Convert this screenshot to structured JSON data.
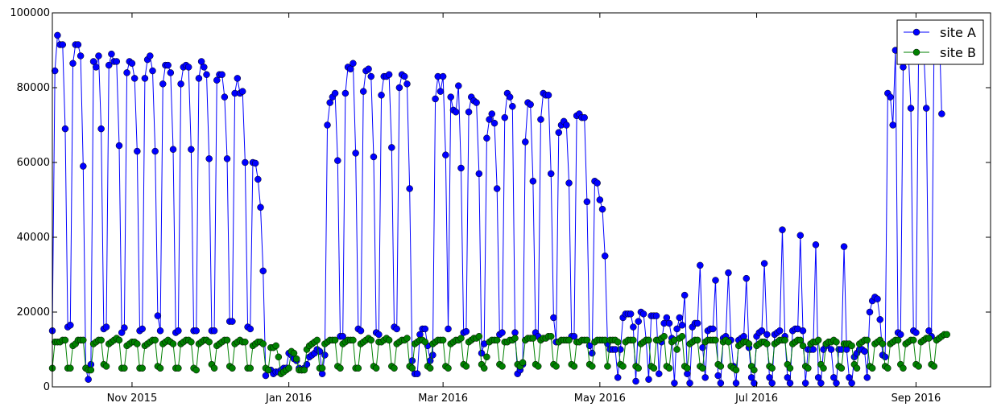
{
  "chart_data": {
    "type": "line",
    "title": "",
    "xlabel": "",
    "ylabel": "",
    "xlim": [
      "2015-10-01",
      "2016-09-30"
    ],
    "ylim": [
      0,
      100000
    ],
    "grid": false,
    "legend_position": "top-right",
    "x_ticks": [
      {
        "date": "2015-11-01",
        "label": "Nov 2015"
      },
      {
        "date": "2016-01-01",
        "label": "Jan 2016"
      },
      {
        "date": "2016-03-01",
        "label": "Mar 2016"
      },
      {
        "date": "2016-05-01",
        "label": "May 2016"
      },
      {
        "date": "2016-07-01",
        "label": "Jul 2016"
      },
      {
        "date": "2016-09-01",
        "label": "Sep 2016"
      }
    ],
    "y_ticks": [
      {
        "value": 0,
        "label": "0"
      },
      {
        "value": 20000,
        "label": "20000"
      },
      {
        "value": 40000,
        "label": "40000"
      },
      {
        "value": 60000,
        "label": "60000"
      },
      {
        "value": 80000,
        "label": "80000"
      },
      {
        "value": 100000,
        "label": "100000"
      }
    ],
    "series": [
      {
        "name": "site A",
        "color": "#0000ff",
        "start_date": "2015-10-01",
        "values": [
          15000,
          84500,
          94000,
          91500,
          91500,
          69000,
          16000,
          16500,
          86500,
          91500,
          91500,
          88500,
          59000,
          5000,
          2000,
          6000,
          87000,
          85500,
          88500,
          69000,
          15500,
          16000,
          86000,
          89000,
          87000,
          87000,
          64500,
          14500,
          15800,
          84000,
          87000,
          86500,
          82500,
          63000,
          15000,
          15500,
          82500,
          87500,
          88500,
          84500,
          63000,
          19000,
          15000,
          81000,
          86000,
          86000,
          84000,
          63500,
          14500,
          15000,
          81000,
          85500,
          86000,
          85500,
          63500,
          15000,
          15000,
          82500,
          87000,
          85500,
          83500,
          61000,
          15000,
          15000,
          82000,
          83500,
          83500,
          77500,
          61000,
          17500,
          17500,
          78500,
          82500,
          78500,
          79000,
          60000,
          16000,
          15500,
          60000,
          59800,
          55500,
          48000,
          31000,
          3000,
          4500,
          4500,
          3500,
          4000,
          4000,
          4500,
          5000,
          5000,
          9000,
          8500,
          7500,
          7000,
          5000,
          4500,
          5000,
          6000,
          8000,
          8500,
          9000,
          10000,
          9500,
          3500,
          8500,
          70000,
          76000,
          77500,
          78500,
          60500,
          13500,
          13500,
          78500,
          85500,
          85000,
          86500,
          62500,
          15500,
          15000,
          79000,
          84500,
          85000,
          83000,
          61500,
          14500,
          14000,
          78000,
          83000,
          83000,
          83500,
          64000,
          16000,
          15500,
          80000,
          83500,
          83000,
          81000,
          53000,
          7000,
          3500,
          3500,
          14000,
          15500,
          15500,
          11000,
          7000,
          8500,
          77000,
          83000,
          79000,
          83000,
          62000,
          15500,
          77500,
          74000,
          73500,
          80500,
          58500,
          14500,
          14800,
          73500,
          77500,
          76500,
          76000,
          57000,
          9000,
          11500,
          66500,
          71500,
          73000,
          70500,
          53000,
          14000,
          14500,
          72000,
          78500,
          77500,
          75000,
          14500,
          3500,
          4500,
          6000,
          65500,
          76000,
          75500,
          55000,
          14500,
          13500,
          71500,
          78500,
          78000,
          78000,
          57000,
          18500,
          12000,
          68000,
          70000,
          71000,
          70000,
          54500,
          13500,
          13500,
          72500,
          73000,
          72000,
          72000,
          49500,
          11000,
          9000,
          55000,
          54500,
          50000,
          47500,
          35000,
          11500,
          10000,
          10000,
          10000,
          2500,
          10000,
          18500,
          19500,
          19500,
          19500,
          16000,
          1500,
          17500,
          20000,
          19500,
          12500,
          2000,
          19000,
          19000,
          19000,
          3500,
          12000,
          17000,
          18500,
          17000,
          13000,
          1000,
          15500,
          18500,
          16500,
          24500,
          3500,
          1000,
          16000,
          17000,
          17000,
          32500,
          10500,
          2500,
          15000,
          15500,
          15500,
          28500,
          3000,
          1000,
          13000,
          13500,
          30500,
          12500,
          5500,
          1000,
          12500,
          13000,
          13500,
          29000,
          10500,
          2500,
          1000,
          13500,
          14500,
          15000,
          33000,
          14000,
          2500,
          1000,
          14000,
          14500,
          15000,
          42000,
          13500,
          2500,
          1000,
          15000,
          15500,
          15500,
          40500,
          15000,
          1000,
          10000,
          10000,
          10000,
          38000,
          2500,
          1000,
          10000,
          11000,
          12000,
          10000,
          2500,
          1000,
          10000,
          10000,
          37500,
          10000,
          2500,
          1000,
          8000,
          9000,
          10000,
          10000,
          9500,
          2500,
          20000,
          23000,
          24000,
          23500,
          18000,
          8500,
          8000,
          78500,
          77500,
          70000,
          90000,
          14500,
          14000,
          85500,
          90000,
          90000,
          74500,
          15000,
          14500,
          90000,
          90000,
          90000,
          74500,
          15000,
          13500,
          90000,
          94500,
          96500,
          73000
        ]
      },
      {
        "name": "site B",
        "color": "#008000",
        "start_date": "2015-10-01",
        "values": [
          5000,
          12000,
          12000,
          12000,
          12500,
          12500,
          5000,
          5000,
          11000,
          11500,
          12500,
          12500,
          12500,
          5000,
          4500,
          4500,
          11500,
          12000,
          12500,
          12500,
          6000,
          5500,
          11500,
          12000,
          12500,
          13000,
          12500,
          5000,
          5000,
          11000,
          11500,
          12000,
          12000,
          11500,
          5000,
          5000,
          11000,
          11500,
          12000,
          12500,
          12500,
          5500,
          5000,
          11500,
          12000,
          12500,
          12000,
          11500,
          5000,
          5000,
          11500,
          12000,
          12500,
          12500,
          12000,
          5000,
          4500,
          11500,
          12000,
          12500,
          12500,
          12000,
          6000,
          5000,
          11000,
          11500,
          12000,
          12500,
          12500,
          5500,
          5000,
          11500,
          12000,
          12500,
          12000,
          12000,
          5000,
          5000,
          11000,
          11500,
          12000,
          12000,
          11500,
          5000,
          4500,
          10500,
          10500,
          11000,
          8000,
          3500,
          4000,
          4500,
          5000,
          9500,
          9000,
          7500,
          4500,
          4500,
          4500,
          10000,
          11000,
          11500,
          12000,
          12500,
          5000,
          5000,
          11500,
          12000,
          12500,
          12500,
          12500,
          5500,
          5000,
          11500,
          12000,
          12500,
          12500,
          12500,
          5000,
          5000,
          11500,
          12000,
          12500,
          13000,
          12500,
          5500,
          5000,
          12000,
          12000,
          12500,
          13000,
          12500,
          5500,
          5000,
          11500,
          12000,
          12500,
          12500,
          13000,
          5500,
          5000,
          11500,
          12000,
          12500,
          12500,
          12000,
          5500,
          5000,
          11500,
          12000,
          12500,
          12500,
          12500,
          5500,
          5000,
          11500,
          12000,
          12500,
          12500,
          13000,
          6000,
          5500,
          12000,
          12500,
          13000,
          13000,
          13500,
          6000,
          5000,
          8000,
          12000,
          12500,
          12500,
          12500,
          6000,
          5500,
          12000,
          12000,
          12500,
          12500,
          13000,
          6000,
          5500,
          6500,
          12500,
          13000,
          13000,
          13000,
          6000,
          5500,
          12500,
          13000,
          13000,
          13500,
          13500,
          6000,
          5500,
          12000,
          12500,
          12500,
          12500,
          12500,
          6000,
          5500,
          12000,
          12000,
          12500,
          12500,
          12500,
          6000,
          5500,
          12000,
          12500,
          12500,
          12500,
          12500,
          5500,
          12500,
          12500,
          12500,
          12000,
          6000,
          5500,
          12000,
          12500,
          12500,
          12500,
          5500,
          5000,
          11500,
          12000,
          12500,
          12500,
          5500,
          5000,
          12500,
          12500,
          13000,
          13500,
          5500,
          5000,
          12000,
          12500,
          10000,
          13000,
          13500,
          5500,
          5000,
          11500,
          12000,
          12500,
          12500,
          5500,
          5000,
          12000,
          12500,
          12500,
          12500,
          12500,
          6000,
          5500,
          12000,
          12500,
          12000,
          5500,
          5000,
          4500,
          11000,
          11500,
          12000,
          12000,
          11500,
          5500,
          4500,
          11000,
          11500,
          12000,
          12000,
          11500,
          5500,
          5000,
          11500,
          12000,
          12500,
          12500,
          12500,
          6000,
          5000,
          11500,
          12000,
          12500,
          12500,
          11000,
          5500,
          5000,
          11500,
          12000,
          12000,
          12500,
          6000,
          5000,
          11500,
          12000,
          12000,
          12500,
          12000,
          5500,
          5000,
          11500,
          11500,
          11500,
          11000,
          6000,
          5000,
          11500,
          12000,
          12500,
          12500,
          5500,
          5000,
          11500,
          12000,
          12500,
          11500,
          5500,
          5000,
          11500,
          12000,
          12500,
          12500,
          6000,
          5000,
          11500,
          12000,
          12500,
          12500,
          6000,
          5500,
          12000,
          12500,
          13000,
          13000,
          6000,
          5500,
          12500,
          13000,
          13500,
          14000,
          14000
        ]
      }
    ]
  }
}
